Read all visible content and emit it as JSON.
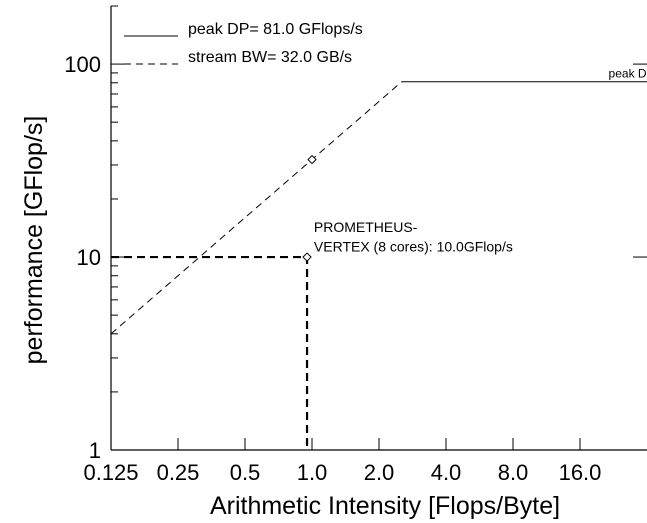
{
  "chart_data": {
    "type": "line",
    "title": "",
    "xlabel": "Arithmetic Intensity [Flops/Byte]",
    "ylabel": "performance [GFlop/s]",
    "x_scale": "log2",
    "y_scale": "log10",
    "xlim": [
      0.125,
      32
    ],
    "ylim": [
      1,
      200
    ],
    "x_ticks": [
      {
        "value": 0.125,
        "label": "0.125"
      },
      {
        "value": 0.25,
        "label": "0.25"
      },
      {
        "value": 0.5,
        "label": "0.5"
      },
      {
        "value": 1,
        "label": "1.0"
      },
      {
        "value": 2,
        "label": "2.0"
      },
      {
        "value": 4,
        "label": "4.0"
      },
      {
        "value": 8,
        "label": "8.0"
      },
      {
        "value": 16,
        "label": "16.0"
      }
    ],
    "y_ticks": [
      {
        "value": 1,
        "label": "1"
      },
      {
        "value": 10,
        "label": "10"
      },
      {
        "value": 100,
        "label": "100"
      }
    ],
    "legend": {
      "placement": "top-left",
      "entries": [
        {
          "style": "solid",
          "label": "peak DP=  81.0 GFlops/s"
        },
        {
          "style": "dashed",
          "label": "stream BW= 32.0 GB/s"
        }
      ]
    },
    "series": [
      {
        "style": "dashed",
        "points": [
          [
            0.125,
            4.0
          ],
          [
            2.53,
            81.0
          ]
        ]
      },
      {
        "style": "solid",
        "points": [
          [
            2.53,
            81.0
          ],
          [
            32,
            81.0
          ]
        ]
      }
    ],
    "markers": [
      {
        "shape": "diamond",
        "x": 1.0,
        "y": 32.0
      },
      {
        "shape": "diamond",
        "x": 0.95,
        "y": 10.0
      }
    ],
    "reference_lines": [
      {
        "style": "dashed-thick",
        "points": [
          [
            0.125,
            10.0
          ],
          [
            0.95,
            10.0
          ],
          [
            0.95,
            1.0
          ]
        ]
      }
    ],
    "annotations": [
      {
        "text": "peak DP",
        "x": 21.5,
        "y": 85.0
      },
      {
        "text": "PROMETHEUS-",
        "x": 1.02,
        "y": 13.5
      },
      {
        "text": "VERTEX (8 cores):  10.0GFlop/s",
        "x": 1.02,
        "y": 10.7
      }
    ]
  }
}
